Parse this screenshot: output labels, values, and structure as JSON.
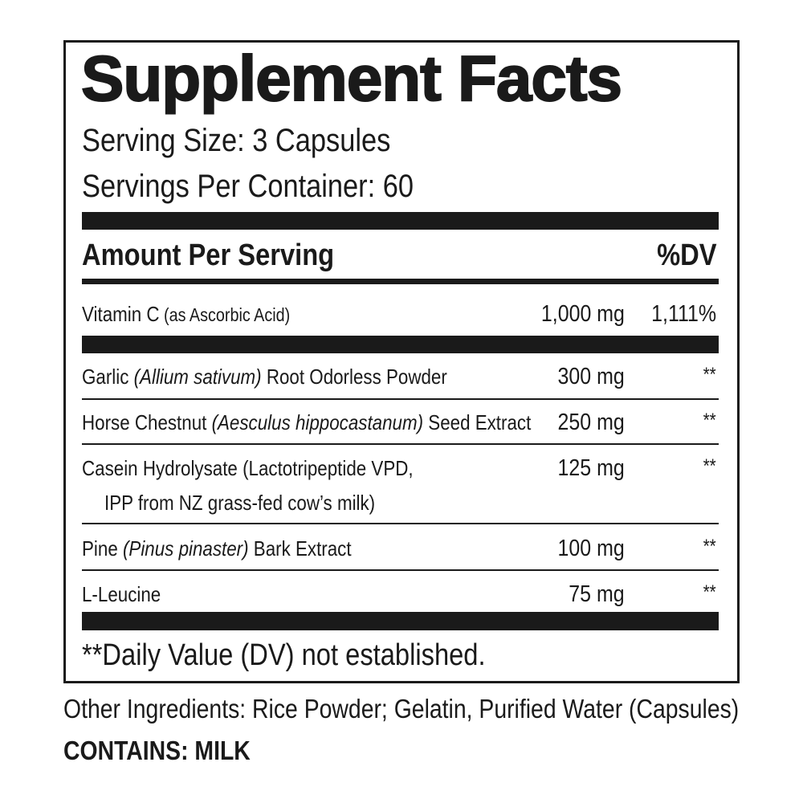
{
  "panel": {
    "title": "Supplement Facts",
    "serving_size": "Serving Size: 3 Capsules",
    "servings_per_container": "Servings Per Container: 60",
    "header": {
      "amount": "Amount Per Serving",
      "dv": "%DV"
    },
    "rows": [
      {
        "name": [
          {
            "text": "Vitamin C",
            "style": "normal"
          },
          {
            "text": "(as Ascorbic Acid)",
            "style": "small"
          }
        ],
        "amount": "1,000 mg",
        "dv": "1,111%"
      },
      {
        "name": [
          {
            "text": "Garlic",
            "style": "normal"
          },
          {
            "text": "(Allium sativum)",
            "style": "italic"
          },
          {
            "text": "Root Odorless Powder",
            "style": "normal"
          }
        ],
        "amount": "300 mg",
        "dv": "**"
      },
      {
        "name": [
          {
            "text": "Horse Chestnut",
            "style": "normal"
          },
          {
            "text": "(Aesculus hippocastanum)",
            "style": "italic"
          },
          {
            "text": "Seed Extract",
            "style": "normal"
          }
        ],
        "amount": "250 mg",
        "dv": "**"
      },
      {
        "name": [
          {
            "text": "Casein Hydrolysate (Lactotripeptide VPD,",
            "style": "normal"
          }
        ],
        "name_line_2": "IPP from NZ grass-fed cow’s milk)",
        "amount": "125 mg",
        "dv": "**"
      },
      {
        "name": [
          {
            "text": "Pine",
            "style": "normal"
          },
          {
            "text": "(Pinus pinaster)",
            "style": "italic"
          },
          {
            "text": "Bark Extract",
            "style": "normal"
          }
        ],
        "amount": "100 mg",
        "dv": "**"
      },
      {
        "name": [
          {
            "text": "L-Leucine",
            "style": "normal"
          }
        ],
        "amount": "75 mg",
        "dv": "**"
      }
    ],
    "footnote": "**Daily Value (DV) not established."
  },
  "other_ingredients": "Other Ingredients: Rice Powder; Gelatin, Purified Water (Capsules)",
  "allergen": "CONTAINS: MILK"
}
